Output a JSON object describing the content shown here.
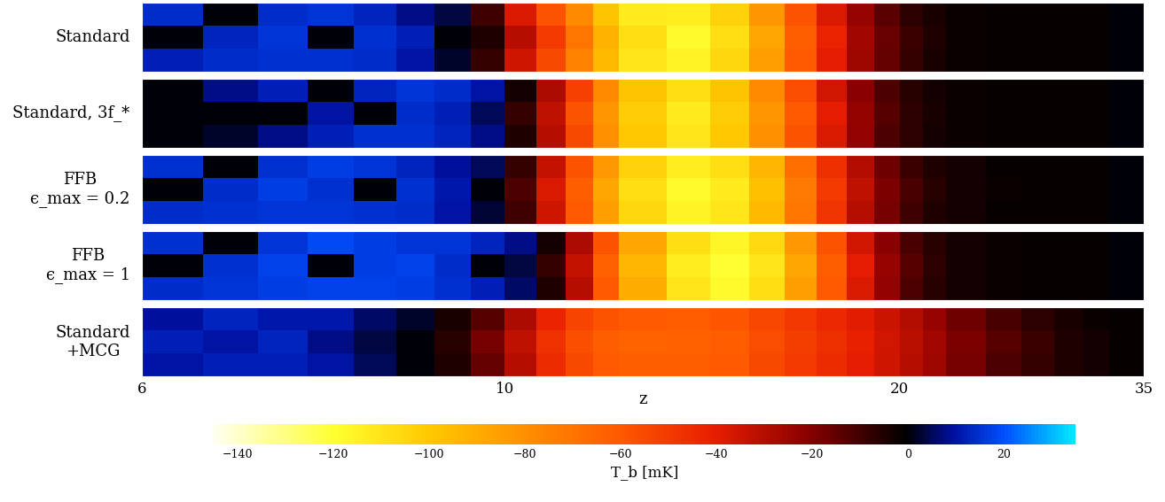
{
  "chart_data": {
    "type": "heatmap",
    "xlabel": "z",
    "xlim": [
      6,
      35
    ],
    "xticks": [
      6,
      10,
      20,
      35
    ],
    "tick_labels": "x",
    "z_edges": [
      6,
      6.5,
      7,
      7.5,
      8,
      8.5,
      9,
      9.5,
      10,
      10.5,
      11,
      11.5,
      12,
      13,
      14,
      15,
      16,
      17,
      18,
      19,
      20,
      21,
      22,
      24,
      26,
      28,
      30,
      32,
      35
    ],
    "panels": [
      {
        "name": "Standard",
        "cells": [
          [
            12,
            14,
            15,
            15,
            14,
            10,
            2,
            -8,
            -35,
            -55,
            -75,
            -95,
            -110,
            -115,
            -105,
            -85,
            -60,
            -40,
            -25,
            -15,
            -8,
            -4,
            -2,
            -1,
            -1,
            -1,
            -1,
            0
          ],
          [
            0,
            13,
            16,
            0,
            15,
            12,
            0,
            -5,
            -30,
            -50,
            -70,
            -92,
            -108,
            -118,
            -108,
            -88,
            -62,
            -42,
            -26,
            -16,
            -9,
            -5,
            -2,
            -1,
            -1,
            -1,
            -1,
            0
          ],
          [
            14,
            0,
            14,
            16,
            13,
            8,
            4,
            -10,
            -38,
            -58,
            -78,
            -98,
            -112,
            -113,
            -103,
            -82,
            -58,
            -38,
            -24,
            -14,
            -7,
            -4,
            -2,
            -1,
            -1,
            -1,
            -1,
            0
          ]
        ]
      },
      {
        "name": "Standard, 3f_*",
        "cells": [
          [
            0,
            2,
            8,
            12,
            15,
            15,
            13,
            8,
            -5,
            -30,
            -55,
            -80,
            -100,
            -110,
            -100,
            -80,
            -58,
            -38,
            -22,
            -12,
            -7,
            -3,
            -2,
            -1,
            -1,
            -1,
            -1,
            0
          ],
          [
            0,
            0,
            0,
            10,
            0,
            14,
            12,
            5,
            -8,
            -32,
            -58,
            -82,
            -102,
            -112,
            -102,
            -82,
            -60,
            -40,
            -23,
            -13,
            -7,
            -4,
            -2,
            -1,
            -1,
            -1,
            -1,
            0
          ],
          [
            0,
            8,
            12,
            0,
            13,
            16,
            14,
            10,
            -3,
            -28,
            -52,
            -78,
            -98,
            -108,
            -98,
            -78,
            -56,
            -36,
            -21,
            -12,
            -6,
            -3,
            -2,
            -1,
            -1,
            -1,
            -1,
            0
          ]
        ]
      },
      {
        "name": "FFB\nϵ_max = 0.2",
        "cells": [
          [
            14,
            15,
            16,
            16,
            15,
            14,
            10,
            3,
            -10,
            -35,
            -60,
            -85,
            -105,
            -115,
            -110,
            -95,
            -70,
            -48,
            -30,
            -18,
            -10,
            -5,
            -3,
            -1,
            -1,
            -1,
            -1,
            0
          ],
          [
            0,
            14,
            17,
            15,
            0,
            15,
            11,
            0,
            -12,
            -38,
            -62,
            -88,
            -108,
            -118,
            -112,
            -97,
            -72,
            -50,
            -32,
            -19,
            -11,
            -6,
            -3,
            -2,
            -1,
            -1,
            -1,
            0
          ],
          [
            15,
            0,
            15,
            17,
            16,
            13,
            9,
            5,
            -8,
            -33,
            -58,
            -83,
            -103,
            -113,
            -108,
            -93,
            -68,
            -46,
            -29,
            -17,
            -9,
            -5,
            -3,
            -1,
            -1,
            -1,
            -1,
            0
          ]
        ]
      },
      {
        "name": "FFB\nϵ_max = 1",
        "cells": [
          [
            14,
            16,
            17,
            18,
            18,
            17,
            15,
            12,
            6,
            -5,
            -30,
            -60,
            -90,
            -110,
            -118,
            -108,
            -85,
            -60,
            -38,
            -22,
            -12,
            -6,
            -3,
            -2,
            -1,
            -1,
            -1,
            0
          ],
          [
            0,
            15,
            18,
            0,
            17,
            18,
            14,
            0,
            4,
            -8,
            -33,
            -63,
            -93,
            -113,
            -120,
            -110,
            -88,
            -62,
            -40,
            -24,
            -13,
            -7,
            -3,
            -2,
            -1,
            -1,
            -1,
            0
          ],
          [
            15,
            0,
            16,
            19,
            17,
            16,
            16,
            13,
            8,
            -3,
            -28,
            -58,
            -88,
            -108,
            -116,
            -106,
            -83,
            -58,
            -36,
            -21,
            -11,
            -6,
            -3,
            -2,
            -1,
            -1,
            -1,
            0
          ]
        ]
      },
      {
        "name": "Standard\n+MCG",
        "cells": [
          [
            10,
            12,
            12,
            10,
            5,
            0,
            -5,
            -15,
            -30,
            -45,
            -55,
            -60,
            -62,
            -62,
            -60,
            -55,
            -50,
            -45,
            -40,
            -35,
            -30,
            -25,
            -18,
            -12,
            -8,
            -5,
            -3,
            -1
          ],
          [
            12,
            10,
            13,
            8,
            4,
            0,
            -6,
            -18,
            -32,
            -47,
            -57,
            -62,
            -64,
            -63,
            -61,
            -56,
            -51,
            -46,
            -41,
            -36,
            -31,
            -26,
            -19,
            -13,
            -9,
            -5,
            -3,
            -1
          ],
          [
            9,
            13,
            11,
            11,
            6,
            2,
            -4,
            -13,
            -28,
            -43,
            -53,
            -58,
            -60,
            -61,
            -59,
            -54,
            -49,
            -44,
            -39,
            -34,
            -29,
            -24,
            -17,
            -11,
            -7,
            -4,
            -2,
            -1
          ]
        ]
      }
    ],
    "colorbar": {
      "label": "T_b [mK]",
      "range": [
        -145,
        35
      ],
      "ticks": [
        {
          "value": -140,
          "label": "−140"
        },
        {
          "value": -120,
          "label": "−120"
        },
        {
          "value": -100,
          "label": "−100"
        },
        {
          "value": -80,
          "label": "−80"
        },
        {
          "value": -60,
          "label": "−60"
        },
        {
          "value": -40,
          "label": "−40"
        },
        {
          "value": -20,
          "label": "−20"
        },
        0,
        20
      ]
    }
  }
}
